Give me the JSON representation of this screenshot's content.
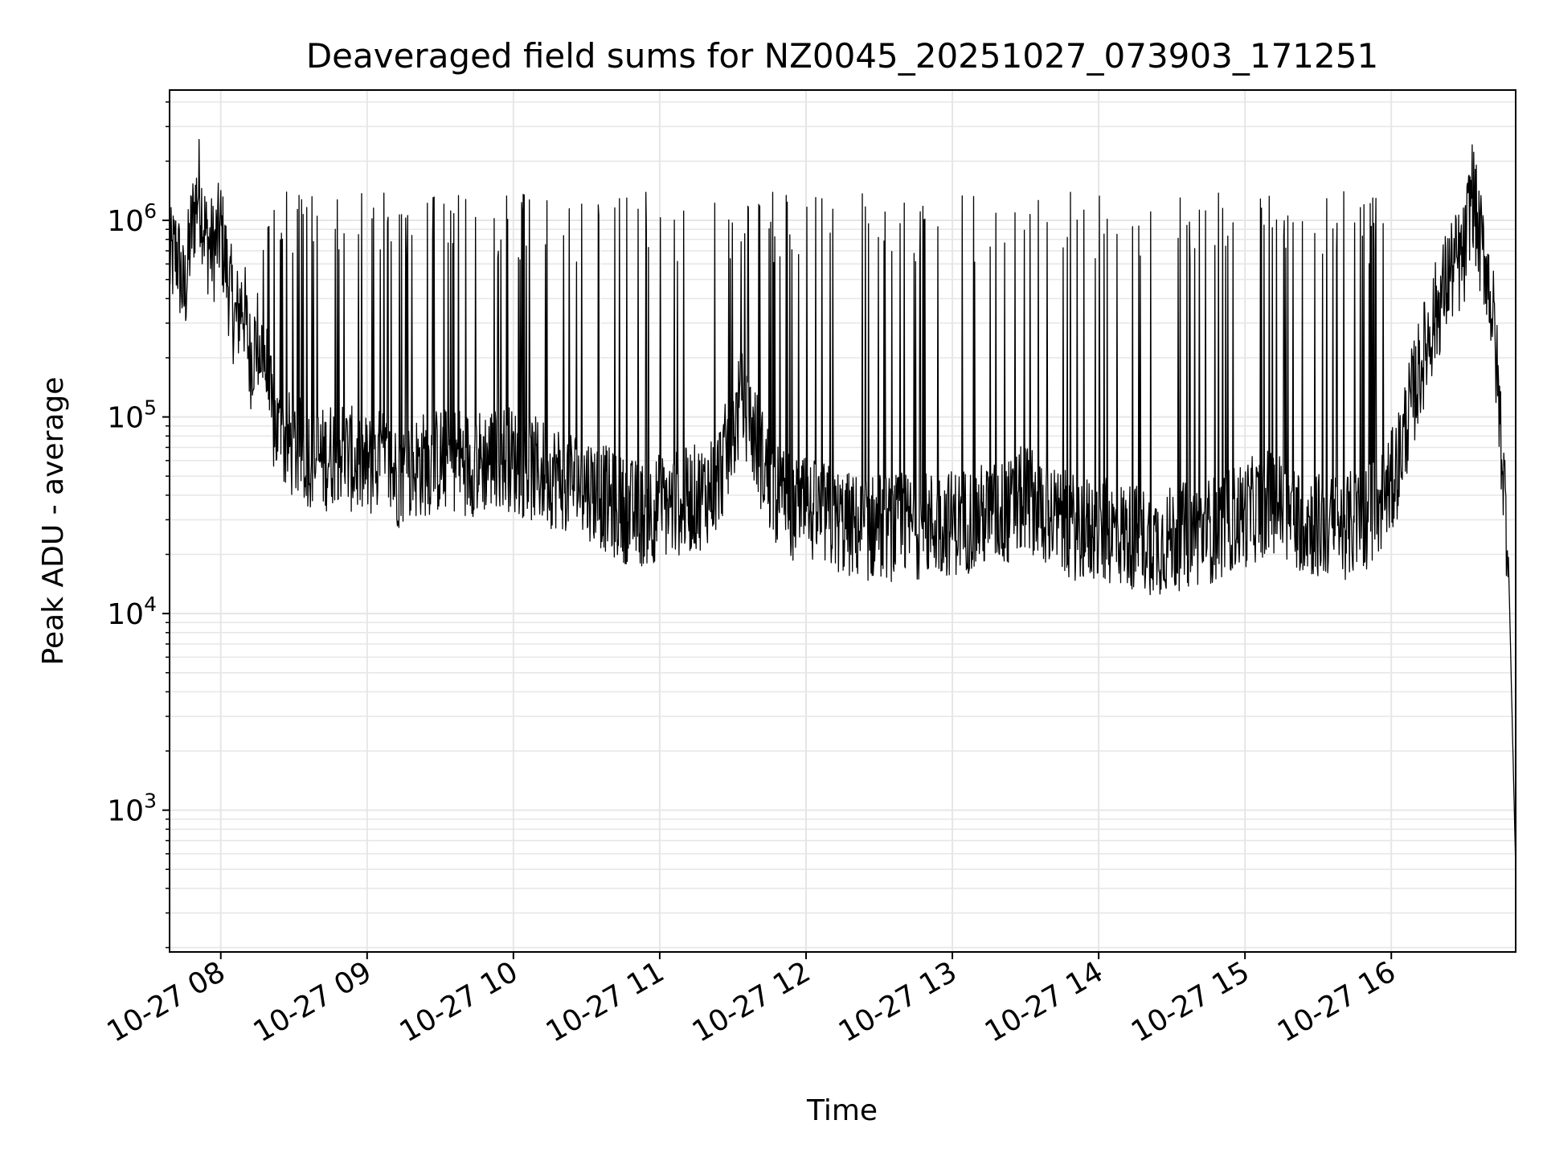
{
  "chart_data": {
    "type": "line",
    "title": "Deaveraged field sums for NZ0045_20251027_073903_171251",
    "xlabel": "Time",
    "ylabel": "Peak ADU - average",
    "yscale": "log",
    "ylim": [
      190,
      4600000
    ],
    "xlim_hours": [
      7.65,
      16.85
    ],
    "grid": true,
    "legend": "none",
    "line_color": "#000000",
    "x_ticks": [
      {
        "hour": 8,
        "label": "10-27 08"
      },
      {
        "hour": 9,
        "label": "10-27 09"
      },
      {
        "hour": 10,
        "label": "10-27 10"
      },
      {
        "hour": 11,
        "label": "10-27 11"
      },
      {
        "hour": 12,
        "label": "10-27 12"
      },
      {
        "hour": 13,
        "label": "10-27 13"
      },
      {
        "hour": 14,
        "label": "10-27 14"
      },
      {
        "hour": 15,
        "label": "10-27 15"
      },
      {
        "hour": 16,
        "label": "10-27 16"
      }
    ],
    "y_ticks": [
      {
        "value": 1000,
        "base": "10",
        "exp": "3"
      },
      {
        "value": 10000,
        "base": "10",
        "exp": "4"
      },
      {
        "value": 100000,
        "base": "10",
        "exp": "5"
      },
      {
        "value": 1000000,
        "base": "10",
        "exp": "6"
      }
    ],
    "series": [
      {
        "name": "Peak ADU - average",
        "x_hours": [
          7.65,
          7.7,
          7.75,
          7.8,
          7.85,
          7.9,
          7.95,
          8.0,
          8.05,
          8.1,
          8.15,
          8.2,
          8.25,
          8.3,
          8.35,
          8.4,
          8.5,
          8.6,
          8.7,
          8.8,
          8.9,
          9.0,
          9.1,
          9.2,
          9.3,
          9.4,
          9.5,
          9.6,
          9.7,
          9.8,
          9.9,
          10.0,
          10.1,
          10.2,
          10.3,
          10.4,
          10.5,
          10.6,
          10.7,
          10.8,
          10.9,
          11.0,
          11.1,
          11.2,
          11.3,
          11.4,
          11.5,
          11.55,
          11.6,
          11.65,
          11.7,
          11.8,
          11.9,
          12.0,
          12.1,
          12.2,
          12.3,
          12.4,
          12.5,
          12.6,
          12.7,
          12.8,
          12.9,
          13.0,
          13.1,
          13.2,
          13.3,
          13.4,
          13.5,
          13.6,
          13.7,
          13.8,
          13.9,
          14.0,
          14.1,
          14.2,
          14.3,
          14.4,
          14.5,
          14.6,
          14.7,
          14.8,
          14.9,
          15.0,
          15.1,
          15.2,
          15.3,
          15.4,
          15.5,
          15.6,
          15.7,
          15.8,
          15.9,
          16.0,
          16.05,
          16.1,
          16.15,
          16.2,
          16.25,
          16.3,
          16.35,
          16.4,
          16.45,
          16.5,
          16.55,
          16.6,
          16.65,
          16.7,
          16.75,
          16.8,
          16.85
        ],
        "values": [
          600000,
          700000,
          400000,
          900000,
          1500000,
          800000,
          700000,
          900000,
          500000,
          300000,
          400000,
          200000,
          250000,
          200000,
          100000,
          80000,
          70000,
          65000,
          60000,
          70000,
          60000,
          55000,
          60000,
          50000,
          55000,
          58000,
          60000,
          62000,
          58000,
          60000,
          65000,
          60000,
          55000,
          52000,
          50000,
          48000,
          45000,
          40000,
          35000,
          33000,
          32000,
          35000,
          36000,
          38000,
          40000,
          50000,
          80000,
          120000,
          100000,
          80000,
          60000,
          40000,
          35000,
          33000,
          32000,
          30000,
          28000,
          27000,
          28000,
          27000,
          28000,
          28000,
          29000,
          29000,
          30000,
          31000,
          32000,
          33000,
          40000,
          35000,
          30000,
          28000,
          27000,
          26000,
          26000,
          25000,
          24000,
          23000,
          24000,
          25000,
          26000,
          27000,
          30000,
          32000,
          35000,
          38000,
          32000,
          30000,
          28000,
          27000,
          28000,
          30000,
          35000,
          45000,
          60000,
          90000,
          130000,
          180000,
          250000,
          330000,
          420000,
          550000,
          600000,
          650000,
          1500000,
          800000,
          600000,
          300000,
          80000,
          20000,
          500
        ]
      }
    ]
  }
}
